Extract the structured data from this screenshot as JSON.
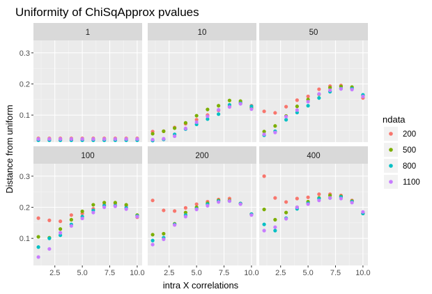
{
  "chart_data": {
    "type": "scatter",
    "title": "Uniformity of ChiSqApprox pvalues",
    "xlabel": "intra X correlations",
    "ylabel": "Distance from uniform",
    "xlim": [
      0.55,
      10.45
    ],
    "ylim": [
      0.013,
      0.34
    ],
    "x_ticks": [
      2.5,
      5.0,
      7.5,
      10.0
    ],
    "x_tick_labels": [
      "2.5",
      "5.0",
      "7.5",
      "10.0"
    ],
    "y_ticks": [
      0.1,
      0.2,
      0.3
    ],
    "y_tick_labels": [
      "0.1",
      "0.2",
      "0.3"
    ],
    "facet_layout": {
      "rows": 2,
      "cols": 3
    },
    "grid": true,
    "legend": {
      "title": "ndata",
      "position": "right",
      "entries": [
        {
          "label": "200",
          "color": "#F8766D"
        },
        {
          "label": "500",
          "color": "#7CAE00"
        },
        {
          "label": "800",
          "color": "#00BFC4"
        },
        {
          "label": "1100",
          "color": "#C77CFF"
        }
      ]
    },
    "x": [
      1,
      2,
      3,
      4,
      5,
      6,
      7,
      8,
      9,
      10
    ],
    "facets": [
      {
        "label": "1",
        "series": [
          {
            "name": "200",
            "values": [
              0.025,
              0.025,
              0.025,
              0.025,
              0.025,
              0.025,
              0.025,
              0.025,
              0.025,
              0.025
            ]
          },
          {
            "name": "500",
            "values": [
              0.022,
              0.022,
              0.022,
              0.022,
              0.022,
              0.022,
              0.022,
              0.022,
              0.022,
              0.022
            ]
          },
          {
            "name": "800",
            "values": [
              0.019,
              0.019,
              0.019,
              0.019,
              0.019,
              0.019,
              0.019,
              0.019,
              0.019,
              0.019
            ]
          },
          {
            "name": "1100",
            "values": [
              0.023,
              0.023,
              0.023,
              0.023,
              0.023,
              0.023,
              0.023,
              0.023,
              0.023,
              0.023
            ]
          }
        ]
      },
      {
        "label": "10",
        "series": [
          {
            "name": "200",
            "values": [
              0.047,
              0.048,
              0.06,
              0.072,
              0.085,
              0.1,
              0.115,
              0.128,
              0.14,
              0.13
            ]
          },
          {
            "name": "500",
            "values": [
              0.04,
              0.048,
              0.058,
              0.075,
              0.098,
              0.118,
              0.13,
              0.147,
              0.145,
              0.123
            ]
          },
          {
            "name": "800",
            "values": [
              0.018,
              0.022,
              0.038,
              0.055,
              0.07,
              0.087,
              0.103,
              0.133,
              0.138,
              0.128
            ]
          },
          {
            "name": "1100",
            "values": [
              0.021,
              0.024,
              0.032,
              0.057,
              0.077,
              0.096,
              0.117,
              0.126,
              0.136,
              0.119
            ]
          }
        ]
      },
      {
        "label": "50",
        "series": [
          {
            "name": "200",
            "values": [
              0.112,
              0.107,
              0.127,
              0.148,
              0.16,
              0.183,
              0.193,
              0.195,
              0.188,
              0.155
            ]
          },
          {
            "name": "500",
            "values": [
              0.047,
              0.065,
              0.097,
              0.128,
              0.15,
              0.167,
              0.188,
              0.192,
              0.19,
              0.163
            ]
          },
          {
            "name": "800",
            "values": [
              0.035,
              0.048,
              0.085,
              0.108,
              0.13,
              0.155,
              0.175,
              0.185,
              0.185,
              0.165
            ]
          },
          {
            "name": "1100",
            "values": [
              0.038,
              0.044,
              0.095,
              0.116,
              0.143,
              0.168,
              0.18,
              0.184,
              0.182,
              0.16
            ]
          }
        ]
      },
      {
        "label": "100",
        "series": [
          {
            "name": "200",
            "values": [
              0.165,
              0.158,
              0.155,
              0.175,
              0.18,
              0.195,
              0.208,
              0.212,
              0.205,
              0.168
            ]
          },
          {
            "name": "500",
            "values": [
              0.105,
              0.102,
              0.13,
              0.16,
              0.187,
              0.208,
              0.215,
              0.215,
              0.208,
              0.175
            ]
          },
          {
            "name": "800",
            "values": [
              0.072,
              0.1,
              0.11,
              0.145,
              0.17,
              0.19,
              0.205,
              0.205,
              0.198,
              0.172
            ]
          },
          {
            "name": "1100",
            "values": [
              0.04,
              0.066,
              0.118,
              0.14,
              0.164,
              0.183,
              0.2,
              0.203,
              0.194,
              0.17
            ]
          }
        ]
      },
      {
        "label": "200",
        "series": [
          {
            "name": "200",
            "values": [
              0.222,
              0.19,
              0.188,
              0.198,
              0.21,
              0.218,
              0.225,
              0.228,
              0.212,
              0.178
            ]
          },
          {
            "name": "500",
            "values": [
              0.112,
              0.115,
              0.147,
              0.183,
              0.2,
              0.213,
              0.222,
              0.222,
              0.212,
              0.178
            ]
          },
          {
            "name": "800",
            "values": [
              0.093,
              0.102,
              0.145,
              0.175,
              0.195,
              0.21,
              0.22,
              0.22,
              0.212,
              0.178
            ]
          },
          {
            "name": "1100",
            "values": [
              0.08,
              0.097,
              0.143,
              0.17,
              0.193,
              0.205,
              0.217,
              0.22,
              0.21,
              0.175
            ]
          }
        ]
      },
      {
        "label": "400",
        "series": [
          {
            "name": "200",
            "values": [
              0.3,
              0.23,
              0.217,
              0.228,
              0.232,
              0.242,
              0.242,
              0.238,
              0.222,
              0.18
            ]
          },
          {
            "name": "500",
            "values": [
              0.193,
              0.16,
              0.183,
              0.2,
              0.218,
              0.23,
              0.238,
              0.235,
              0.22,
              0.18
            ]
          },
          {
            "name": "800",
            "values": [
              0.145,
              0.125,
              0.165,
              0.195,
              0.213,
              0.228,
              0.23,
              0.233,
              0.218,
              0.18
            ]
          },
          {
            "name": "1100",
            "values": [
              0.125,
              0.136,
              0.163,
              0.2,
              0.21,
              0.222,
              0.23,
              0.228,
              0.215,
              0.185
            ]
          }
        ]
      }
    ]
  }
}
